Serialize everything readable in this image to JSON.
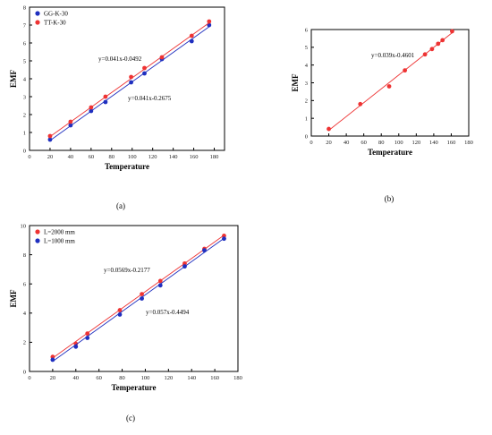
{
  "colors": {
    "red": "#ee3333",
    "blue": "#1f2fbf",
    "axis": "#000000"
  },
  "chart_data": [
    {
      "id": "a",
      "type": "scatter",
      "caption": "(a)",
      "title": "",
      "xlabel": "Temperature",
      "ylabel": "EMF",
      "xlim": [
        0,
        190
      ],
      "ylim": [
        0,
        8
      ],
      "xticks": [
        0,
        20,
        40,
        60,
        80,
        100,
        120,
        140,
        160,
        180
      ],
      "yticks": [
        0,
        1,
        2,
        3,
        4,
        5,
        6,
        7,
        8
      ],
      "grid": false,
      "legend": "top-left",
      "series": [
        {
          "name": "GG-K-30",
          "color": "#1f2fbf",
          "x": [
            20,
            40,
            60,
            74,
            99,
            112,
            129,
            158,
            175
          ],
          "y": [
            0.6,
            1.4,
            2.2,
            2.7,
            3.8,
            4.3,
            5.1,
            6.1,
            7.0
          ],
          "fit": {
            "slope": 0.041,
            "intercept": -0.2675,
            "label": "y=0.041x-0.2675"
          }
        },
        {
          "name": "TT-K-30",
          "color": "#ee3333",
          "x": [
            20,
            40,
            60,
            74,
            99,
            112,
            129,
            158,
            175
          ],
          "y": [
            0.8,
            1.6,
            2.4,
            3.0,
            4.1,
            4.6,
            5.2,
            6.4,
            7.2
          ],
          "fit": {
            "slope": 0.041,
            "intercept": -0.0492,
            "label": "y=0.041x-0.0492"
          }
        }
      ]
    },
    {
      "id": "b",
      "type": "scatter",
      "caption": "(b)",
      "title": "",
      "xlabel": "Temperature",
      "ylabel": "EMF",
      "xlim": [
        0,
        180
      ],
      "ylim": [
        0,
        6
      ],
      "xticks": [
        0,
        20,
        40,
        60,
        80,
        100,
        120,
        140,
        160,
        180
      ],
      "yticks": [
        0,
        1,
        2,
        3,
        4,
        5,
        6
      ],
      "grid": false,
      "legend": "none",
      "series": [
        {
          "name": "",
          "color": "#ee3333",
          "x": [
            20,
            56,
            89,
            107,
            130,
            138,
            145,
            150,
            161
          ],
          "y": [
            0.4,
            1.8,
            2.8,
            3.7,
            4.6,
            4.9,
            5.2,
            5.4,
            5.9
          ],
          "fit": {
            "slope": 0.039,
            "intercept": -0.4601,
            "label": "y=0.039x-0.4601"
          }
        }
      ]
    },
    {
      "id": "c",
      "type": "scatter",
      "caption": "(c)",
      "title": "",
      "xlabel": "Temperature",
      "ylabel": "EMF",
      "xlim": [
        0,
        180
      ],
      "ylim": [
        0,
        10
      ],
      "xticks": [
        0,
        20,
        40,
        60,
        80,
        100,
        120,
        140,
        160,
        180
      ],
      "yticks": [
        0,
        2,
        4,
        6,
        8,
        10
      ],
      "grid": false,
      "legend": "top-left",
      "series": [
        {
          "name": "L=2000 mm",
          "color": "#ee3333",
          "x": [
            20,
            40,
            50,
            78,
            97,
            113,
            134,
            151,
            168
          ],
          "y": [
            1.0,
            1.9,
            2.6,
            4.2,
            5.3,
            6.2,
            7.4,
            8.4,
            9.3
          ],
          "fit": {
            "slope": 0.0569,
            "intercept": -0.2177,
            "label": "y=0.0569x-0.2177"
          }
        },
        {
          "name": "L=1000 mm",
          "color": "#1f2fbf",
          "x": [
            20,
            40,
            50,
            78,
            97,
            113,
            134,
            151,
            168
          ],
          "y": [
            0.8,
            1.7,
            2.3,
            3.9,
            5.0,
            5.9,
            7.2,
            8.3,
            9.1
          ],
          "fit": {
            "slope": 0.057,
            "intercept": -0.4494,
            "label": "y=0.057x-0.4494"
          }
        }
      ]
    }
  ]
}
